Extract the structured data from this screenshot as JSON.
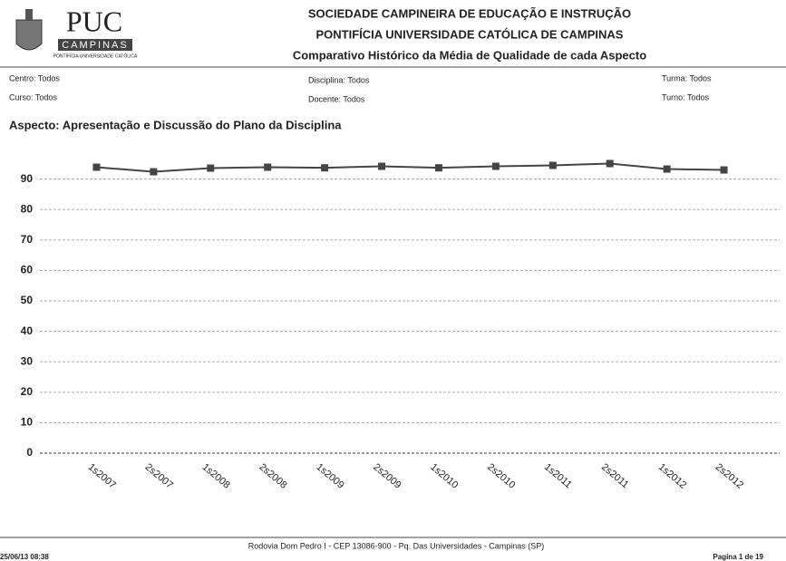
{
  "header": {
    "logo_text": "PUC",
    "logo_banner": "CAMPINAS",
    "logo_caption": "PONTIFÍCIA UNIVERSIDADE CATÓLICA",
    "line1": "SOCIEDADE CAMPINEIRA DE EDUCAÇÃO E INSTRUÇÃO",
    "line2": "PONTIFÍCIA UNIVERSIDADE CATÓLICA DE CAMPINAS",
    "line3": "Comparativo Histórico da Média de Qualidade de cada Aspecto"
  },
  "filters": {
    "centro": "Centro: Todos",
    "disciplina": "Disciplina: Todos",
    "turma": "Turma: Todos",
    "curso": "Curso: Todos",
    "docente": "Docente: Todos",
    "turno": "Turno: Todos"
  },
  "chart_data": {
    "type": "line",
    "title": "Aspecto: Apresentação e Discussão do Plano da Disciplina",
    "categories": [
      "1s2007",
      "2s2007",
      "1s2008",
      "2s2008",
      "1s2009",
      "2s2009",
      "1s2010",
      "2s2010",
      "1s2011",
      "2s2011",
      "1s2012",
      "2s2012"
    ],
    "values": [
      93.9,
      92.4,
      93.6,
      93.9,
      93.7,
      94.2,
      93.7,
      94.2,
      94.5,
      95.1,
      93.3,
      93.0
    ],
    "color": "#444444",
    "ylim": [
      0,
      100
    ],
    "yticks": [
      0,
      10,
      20,
      30,
      40,
      50,
      60,
      70,
      80,
      90
    ],
    "grid": true
  },
  "footer": {
    "address": "Rodovia Dom Pedro I - CEP 13086-900 - Pq. Das Universidades - Campinas (SP)",
    "date": "25/06/13 08:38",
    "page": "Pagina 1 de  19"
  }
}
